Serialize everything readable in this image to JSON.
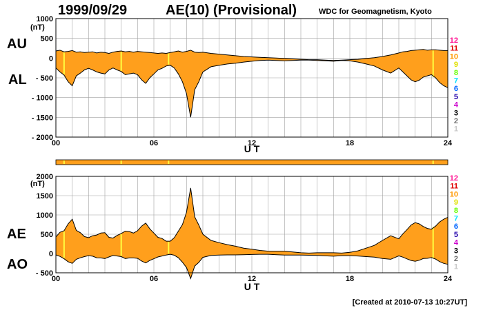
{
  "header": {
    "date": "1999/09/29",
    "title": "AE(10) (Provisional)",
    "source": "WDC for Geomagnetism, Kyoto"
  },
  "footer": {
    "created": "[Created at 2010-07-13 10:27UT]"
  },
  "colors": {
    "fill": "#ff9f1c",
    "line": "#000000",
    "grid": "#a0a0a0",
    "marker": "#ffff40"
  },
  "station_scale": [
    {
      "n": "12",
      "color": "#ff1493"
    },
    {
      "n": "11",
      "color": "#e00000"
    },
    {
      "n": "10",
      "color": "#ff9900"
    },
    {
      "n": "9",
      "color": "#e0e000"
    },
    {
      "n": "8",
      "color": "#66ff00"
    },
    {
      "n": "7",
      "color": "#00e0ff"
    },
    {
      "n": "6",
      "color": "#0066ff"
    },
    {
      "n": "5",
      "color": "#2200aa"
    },
    {
      "n": "4",
      "color": "#cc00cc"
    },
    {
      "n": "3",
      "color": "#000000"
    },
    {
      "n": "2",
      "color": "#707070"
    },
    {
      "n": "1",
      "color": "#c8c8c8"
    }
  ],
  "chart_data": [
    {
      "type": "area",
      "panel": "top",
      "upper_label": "AU",
      "lower_label": "AL",
      "unit": "(nT)",
      "xlabel": "U T",
      "xlim": [
        0,
        24
      ],
      "ylim": [
        -2000,
        1000
      ],
      "yticks": [
        1000,
        500,
        0,
        -500,
        -1000,
        -1500,
        -2000
      ],
      "ytick_labels": [
        "1000",
        "500",
        "0",
        "- 500",
        "- 1000",
        "- 1500",
        "- 2000"
      ],
      "xticks": [
        0,
        6,
        12,
        18,
        24
      ],
      "xtick_labels": [
        "00",
        "06",
        "12",
        "18",
        "24"
      ],
      "grid": true,
      "markers_ut": [
        0.5,
        4.0,
        6.9,
        23.1
      ],
      "x": [
        0,
        0.25,
        0.5,
        0.75,
        1.0,
        1.25,
        1.5,
        1.75,
        2.0,
        2.25,
        2.5,
        2.75,
        3.0,
        3.25,
        3.5,
        3.75,
        4.0,
        4.25,
        4.5,
        4.75,
        5.0,
        5.25,
        5.5,
        5.75,
        6.0,
        6.25,
        6.5,
        6.75,
        7.0,
        7.25,
        7.5,
        7.75,
        8.0,
        8.25,
        8.5,
        8.75,
        9.0,
        9.5,
        10.0,
        10.5,
        11.0,
        11.5,
        12.0,
        12.5,
        13.0,
        13.5,
        14.0,
        14.5,
        15.0,
        15.5,
        16.0,
        16.5,
        17.0,
        17.5,
        18.0,
        18.5,
        19.0,
        19.5,
        20.0,
        20.5,
        21.0,
        21.25,
        21.5,
        21.75,
        22.0,
        22.25,
        22.5,
        22.75,
        23.0,
        23.25,
        23.5,
        23.75,
        24.0
      ],
      "series": [
        {
          "name": "AU",
          "values": [
            180,
            200,
            160,
            170,
            190,
            150,
            160,
            140,
            150,
            160,
            130,
            150,
            140,
            120,
            150,
            170,
            180,
            160,
            170,
            150,
            170,
            160,
            150,
            140,
            130,
            120,
            130,
            120,
            140,
            160,
            180,
            150,
            170,
            200,
            150,
            140,
            150,
            120,
            100,
            80,
            60,
            40,
            30,
            20,
            10,
            0,
            -10,
            -20,
            -30,
            -40,
            -40,
            -50,
            -60,
            -50,
            -40,
            -30,
            -10,
            10,
            40,
            80,
            130,
            160,
            170,
            190,
            200,
            210,
            220,
            200,
            210,
            210,
            200,
            190,
            190
          ]
        },
        {
          "name": "AL",
          "values": [
            -250,
            -350,
            -430,
            -600,
            -700,
            -450,
            -380,
            -300,
            -260,
            -300,
            -350,
            -380,
            -400,
            -300,
            -250,
            -300,
            -340,
            -420,
            -400,
            -380,
            -420,
            -550,
            -640,
            -500,
            -400,
            -300,
            -260,
            -200,
            -180,
            -250,
            -400,
            -600,
            -900,
            -1500,
            -800,
            -600,
            -350,
            -220,
            -180,
            -150,
            -130,
            -100,
            -80,
            -60,
            -50,
            -60,
            -70,
            -60,
            -50,
            -50,
            -60,
            -70,
            -80,
            -60,
            -70,
            -100,
            -150,
            -200,
            -300,
            -380,
            -250,
            -350,
            -450,
            -550,
            -600,
            -560,
            -480,
            -450,
            -420,
            -500,
            -620,
            -700,
            -750
          ]
        }
      ]
    },
    {
      "type": "area",
      "panel": "bottom",
      "upper_label": "AE",
      "lower_label": "AO",
      "unit": "(nT)",
      "xlabel": "U T",
      "xlim": [
        0,
        24
      ],
      "ylim": [
        -500,
        2000
      ],
      "yticks": [
        2000,
        1500,
        1000,
        500,
        0,
        -500
      ],
      "ytick_labels": [
        "2000",
        "1500",
        "1000",
        "500",
        "0",
        "- 500"
      ],
      "xticks": [
        0,
        6,
        12,
        18,
        24
      ],
      "xtick_labels": [
        "00",
        "06",
        "12",
        "18",
        "24"
      ],
      "grid": true,
      "markers_ut": [
        0.5,
        4.0,
        6.9,
        23.1
      ],
      "x": [
        0,
        0.25,
        0.5,
        0.75,
        1.0,
        1.25,
        1.5,
        1.75,
        2.0,
        2.25,
        2.5,
        2.75,
        3.0,
        3.25,
        3.5,
        3.75,
        4.0,
        4.25,
        4.5,
        4.75,
        5.0,
        5.25,
        5.5,
        5.75,
        6.0,
        6.25,
        6.5,
        6.75,
        7.0,
        7.25,
        7.5,
        7.75,
        8.0,
        8.25,
        8.5,
        8.75,
        9.0,
        9.5,
        10.0,
        10.5,
        11.0,
        11.5,
        12.0,
        12.5,
        13.0,
        13.5,
        14.0,
        14.5,
        15.0,
        15.5,
        16.0,
        16.5,
        17.0,
        17.5,
        18.0,
        18.5,
        19.0,
        19.5,
        20.0,
        20.5,
        21.0,
        21.25,
        21.5,
        21.75,
        22.0,
        22.25,
        22.5,
        22.75,
        23.0,
        23.25,
        23.5,
        23.75,
        24.0
      ],
      "series": [
        {
          "name": "AE",
          "values": [
            430,
            550,
            590,
            770,
            890,
            600,
            540,
            440,
            410,
            460,
            480,
            530,
            540,
            420,
            400,
            470,
            520,
            580,
            570,
            530,
            590,
            710,
            790,
            640,
            530,
            420,
            390,
            320,
            320,
            410,
            580,
            750,
            1070,
            1700,
            950,
            740,
            500,
            340,
            280,
            230,
            190,
            140,
            110,
            80,
            60,
            60,
            60,
            40,
            20,
            10,
            20,
            20,
            20,
            10,
            30,
            70,
            140,
            210,
            340,
            460,
            380,
            510,
            620,
            740,
            800,
            770,
            700,
            650,
            630,
            710,
            820,
            890,
            940
          ]
        },
        {
          "name": "AO",
          "values": [
            -35,
            -75,
            -135,
            -215,
            -255,
            -150,
            -110,
            -80,
            -55,
            -70,
            -110,
            -115,
            -130,
            -90,
            -50,
            -65,
            -80,
            -130,
            -115,
            -115,
            -125,
            -195,
            -245,
            -180,
            -135,
            -90,
            -65,
            -40,
            -20,
            -45,
            -110,
            -225,
            -365,
            -650,
            -325,
            -230,
            -100,
            -50,
            -40,
            -35,
            -35,
            -30,
            -25,
            -20,
            -20,
            -30,
            -40,
            -40,
            -40,
            -45,
            -50,
            -60,
            -70,
            -55,
            -55,
            -65,
            -80,
            -95,
            -130,
            -150,
            -60,
            -95,
            -140,
            -180,
            -200,
            -175,
            -130,
            -125,
            -105,
            -145,
            -210,
            -255,
            -280
          ]
        }
      ]
    }
  ]
}
